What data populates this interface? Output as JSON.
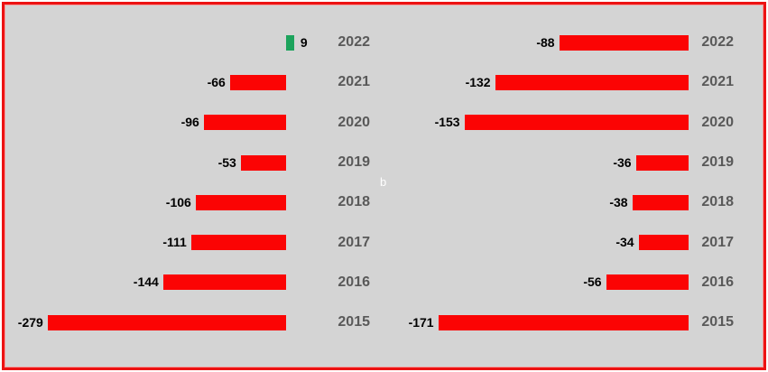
{
  "app": {
    "page_background": "#ffffff",
    "panel_background": "#d4d4d4",
    "frame_border_color": "#ec1212",
    "subplot_label": "b"
  },
  "chart_data": [
    {
      "type": "bar",
      "orientation": "horizontal",
      "panel": "left",
      "title": "",
      "xlabel": "",
      "ylabel": "",
      "categories": [
        "2022",
        "2021",
        "2020",
        "2019",
        "2018",
        "2017",
        "2016",
        "2015"
      ],
      "values": [
        9,
        -66,
        -96,
        -53,
        -106,
        -111,
        -144,
        -279
      ],
      "value_labels": [
        "9",
        "-66",
        "-96",
        "-53",
        "-106",
        "-111",
        "-144",
        "-279"
      ],
      "positive_color": "#1ca35c",
      "negative_color": "#fb0404",
      "value_label_color": "#000000",
      "category_label_color": "#595959",
      "xlim": [
        -300,
        20
      ],
      "grid": false,
      "axes_hidden": true,
      "legend": "none"
    },
    {
      "type": "bar",
      "orientation": "horizontal",
      "panel": "right",
      "title": "",
      "xlabel": "",
      "ylabel": "",
      "categories": [
        "2022",
        "2021",
        "2020",
        "2019",
        "2018",
        "2017",
        "2016",
        "2015"
      ],
      "values": [
        -88,
        -132,
        -153,
        -36,
        -38,
        -34,
        -56,
        -171
      ],
      "value_labels": [
        "-88",
        "-132",
        "-153",
        "-36",
        "-38",
        "-34",
        "-56",
        "-171"
      ],
      "positive_color": "#1ca35c",
      "negative_color": "#fb0404",
      "value_label_color": "#000000",
      "category_label_color": "#595959",
      "xlim": [
        -185,
        0
      ],
      "grid": false,
      "axes_hidden": true,
      "legend": "none"
    }
  ]
}
